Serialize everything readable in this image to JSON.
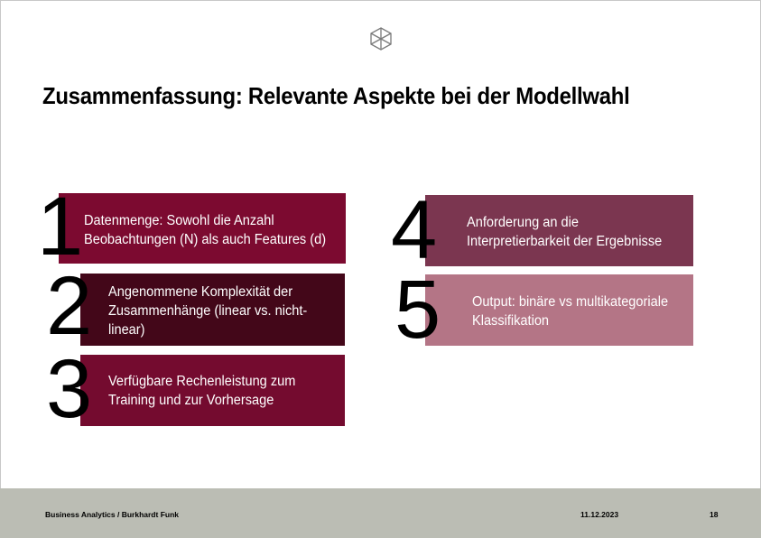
{
  "slide": {
    "title": "Zusammenfassung: Relevante Aspekte bei der Modellwahl",
    "logo_icon": "cube-icon",
    "items": [
      {
        "number": "1",
        "text": "Datenmenge: Sowohl die Anzahl Beobachtungen (N) als auch Features (d)",
        "color": "#7c0a30"
      },
      {
        "number": "2",
        "text": "Angenommene Komplexität der Zusammenhänge (linear vs. nicht-linear)",
        "color": "#430719"
      },
      {
        "number": "3",
        "text": "Verfügbare Rechenleistung zum Training und zur Vorhersage",
        "color": "#740b2f"
      },
      {
        "number": "4",
        "text": "Anforderung an die Interpretierbarkeit der  Ergebnisse",
        "color": "#7b3650"
      },
      {
        "number": "5",
        "text": "Output: binäre vs multikategoriale Klassifikation",
        "color": "#b47586"
      }
    ]
  },
  "footer": {
    "left": "Business Analytics / Burkhardt Funk",
    "date": "11.12.2023",
    "page": "18"
  }
}
